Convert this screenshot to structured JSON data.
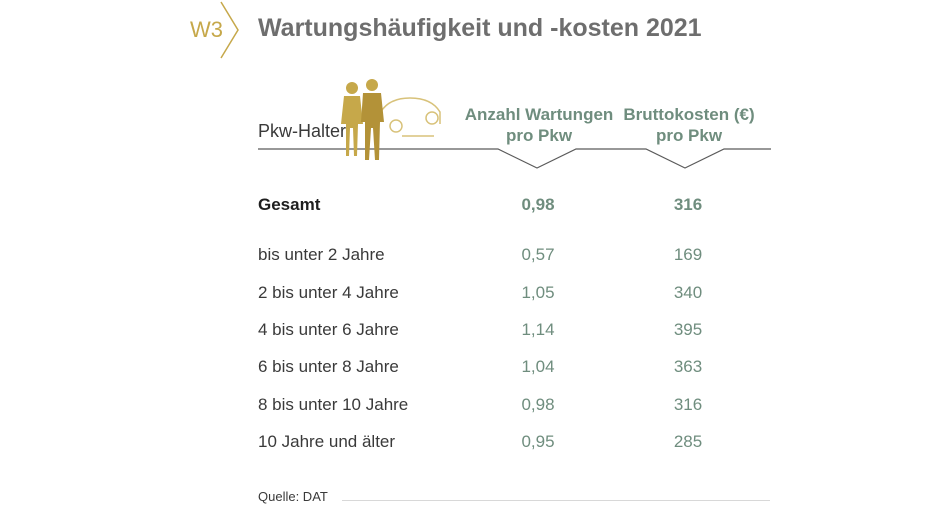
{
  "badge": "W3",
  "title": "Wartungshäufigkeit und -kosten 2021",
  "chart_data": {
    "type": "table",
    "row_header": "Pkw-Halter",
    "columns": [
      "Anzahl Wartungen pro Pkw",
      "Bruttokosten (€) pro Pkw"
    ],
    "rows": [
      {
        "label": "Gesamt",
        "values": [
          "0,98",
          "316"
        ],
        "bold": true
      },
      {
        "label": "bis unter 2 Jahre",
        "values": [
          "0,57",
          "169"
        ]
      },
      {
        "label": "2 bis unter 4 Jahre",
        "values": [
          "1,05",
          "340"
        ]
      },
      {
        "label": "4 bis unter 6 Jahre",
        "values": [
          "1,14",
          "395"
        ]
      },
      {
        "label": "6 bis unter 8 Jahre",
        "values": [
          "1,04",
          "363"
        ]
      },
      {
        "label": "8 bis unter 10 Jahre",
        "values": [
          "0,98",
          "316"
        ]
      },
      {
        "label": "10 Jahre und älter",
        "values": [
          "0,95",
          "285"
        ]
      }
    ]
  },
  "header": {
    "col1_line1": "Anzahl Wartungen",
    "col1_line2": "pro Pkw",
    "col2_line1": "Bruttokosten (€)",
    "col2_line2": "pro Pkw"
  },
  "source": "Quelle: DAT",
  "colors": {
    "gold": "#c6a84a",
    "teal": "#6f8d7e",
    "title": "#6e6e6e"
  },
  "illustration": "couple-with-car-icon"
}
